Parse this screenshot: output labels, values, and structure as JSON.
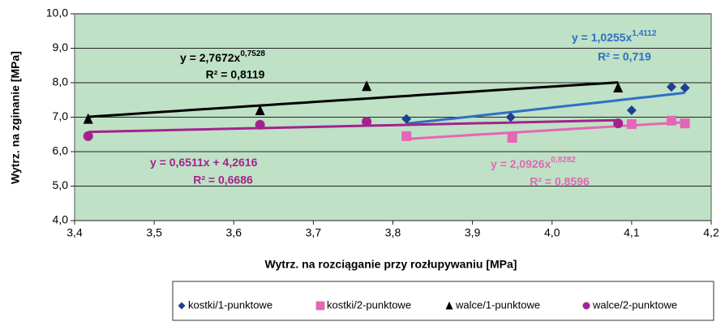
{
  "chart_data": {
    "type": "scatter",
    "xlabel": "Wytrz. na rozciąganie przy rozłupywaniu [MPa]",
    "ylabel": "Wytrz.  na zginanie [MPa]",
    "xlim": [
      3.4,
      4.2
    ],
    "xticks": [
      {
        "value": 3.4,
        "label": "3,4"
      },
      {
        "value": 3.5,
        "label": "3,5"
      },
      {
        "value": 3.6,
        "label": "3,6"
      },
      {
        "value": 3.7,
        "label": "3,7"
      },
      {
        "value": 3.8,
        "label": "3,8"
      },
      {
        "value": 3.9,
        "label": "3,9"
      },
      {
        "value": 4.0,
        "label": "4,0"
      },
      {
        "value": 4.1,
        "label": "4,1"
      },
      {
        "value": 4.2,
        "label": "4,2"
      }
    ],
    "ylim": [
      4.0,
      10.0
    ],
    "yticks": [
      {
        "value": 4.0,
        "label": "4,0"
      },
      {
        "value": 5.0,
        "label": "5,0"
      },
      {
        "value": 6.0,
        "label": "6,0"
      },
      {
        "value": 7.0,
        "label": "7,0"
      },
      {
        "value": 8.0,
        "label": "8,0"
      },
      {
        "value": 9.0,
        "label": "9,0"
      },
      {
        "value": 10.0,
        "label": "10,0"
      }
    ],
    "grid": true,
    "legend": "bottom",
    "series": [
      {
        "name": "kostki/1-punktowe",
        "color": "#1f3f8f",
        "line_color": "#2f6fc6",
        "marker": "diamond",
        "trendline": "power",
        "x": [
          3.817,
          3.948,
          4.1,
          4.15,
          4.167
        ],
        "values": [
          6.95,
          7.0,
          7.2,
          7.88,
          7.85
        ]
      },
      {
        "name": "kostki/2-punktowe",
        "color": "#e466b6",
        "line_color": "#e466b6",
        "marker": "square",
        "trendline": "power",
        "x": [
          3.817,
          3.95,
          4.1,
          4.15,
          4.167
        ],
        "values": [
          6.45,
          6.4,
          6.8,
          6.9,
          6.82
        ]
      },
      {
        "name": "walce/1-punktowe",
        "color": "#000000",
        "line_color": "#000000",
        "marker": "triangle",
        "trendline": "power",
        "x": [
          3.417,
          3.633,
          3.767,
          4.083
        ],
        "values": [
          6.95,
          7.2,
          7.9,
          7.86
        ]
      },
      {
        "name": "walce/2-punktowe",
        "color": "#a3228f",
        "line_color": "#a3228f",
        "marker": "circle",
        "trendline": "linear",
        "x": [
          3.417,
          3.633,
          3.767,
          4.083
        ],
        "values": [
          6.45,
          6.78,
          6.87,
          6.82
        ]
      }
    ],
    "annotations": [
      {
        "text": "y = 2,7672x",
        "sup": "0,7528",
        "r2": "R² = 0,8119",
        "color": "#000000"
      },
      {
        "text": "y = 1,0255x",
        "sup": "1,4112",
        "r2": "R² = 0,719",
        "color": "#2f6fc6"
      },
      {
        "text": "y = 0,6511x + 4,2616",
        "r2": "R² = 0,6686",
        "color": "#a3228f"
      },
      {
        "text": "y = 2,0926x",
        "sup": "0,8282",
        "r2": "R² = 0,8596",
        "color": "#e466b6"
      }
    ]
  }
}
